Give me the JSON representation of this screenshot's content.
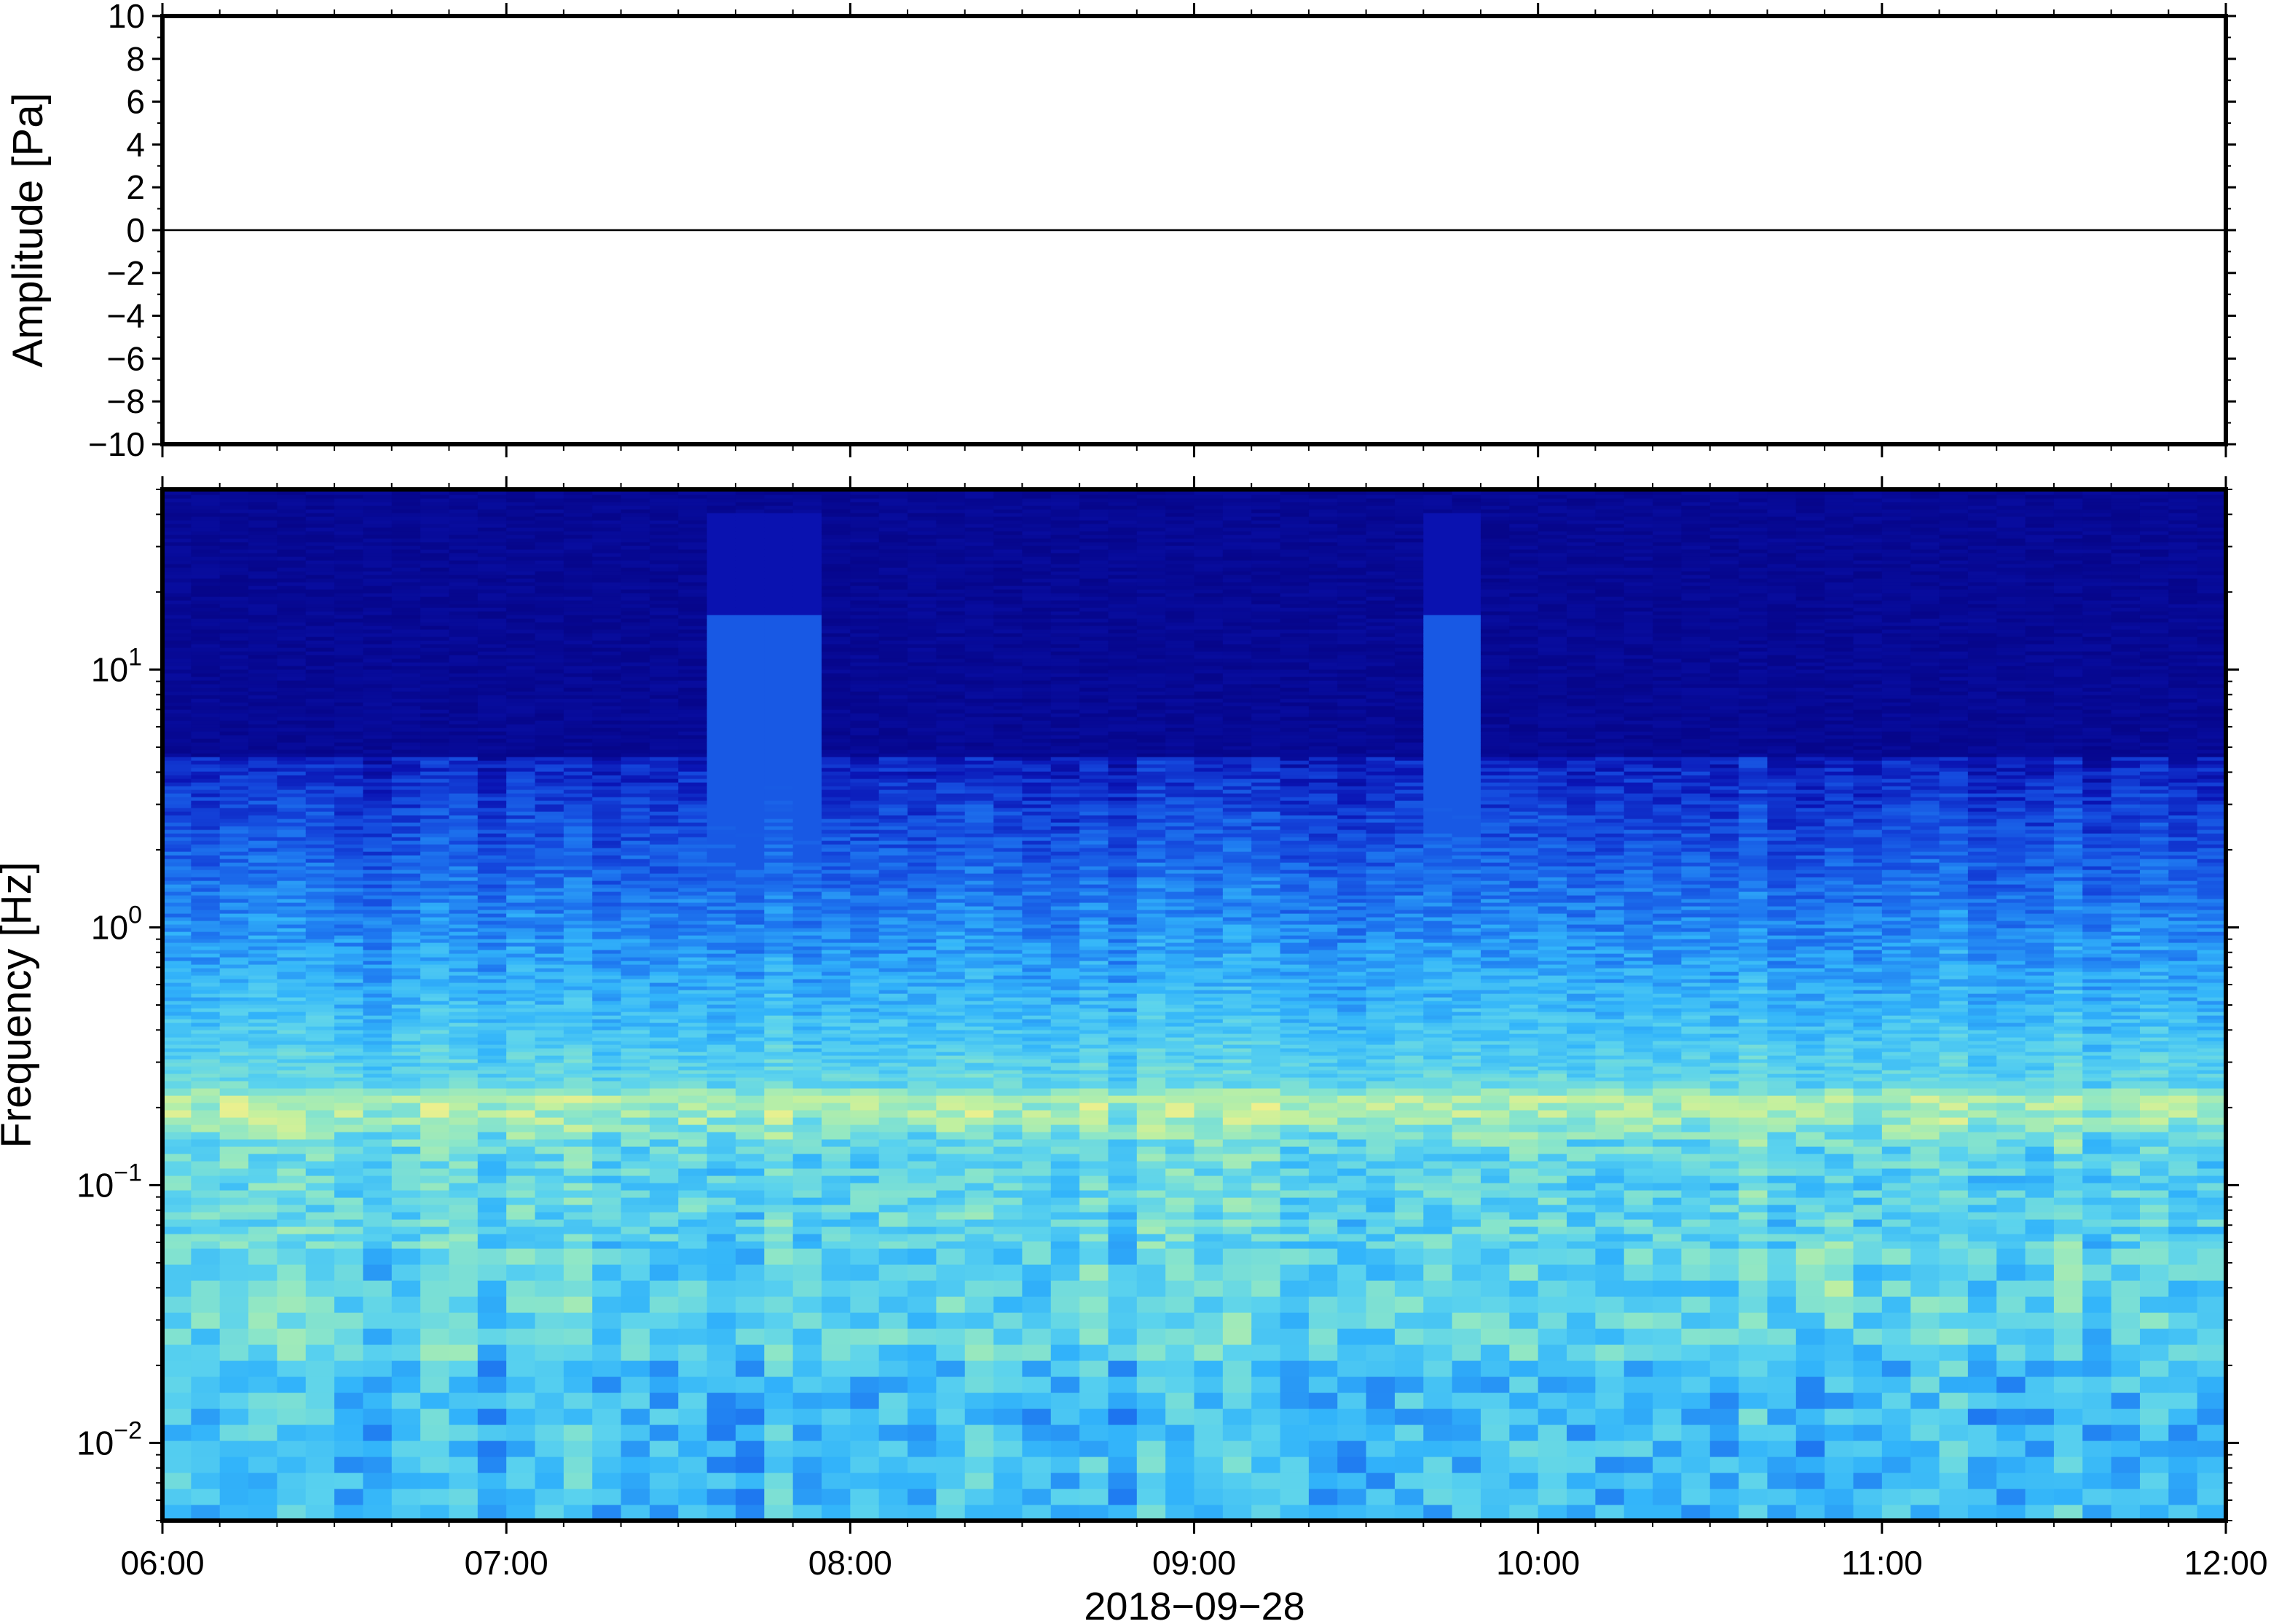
{
  "chart_data": [
    {
      "type": "line",
      "ylabel": "Amplitude [Pa]",
      "ylim": [
        -10,
        10
      ],
      "yticks": [
        "10",
        "8",
        "6",
        "4",
        "2",
        "0",
        "−2",
        "−4",
        "−6",
        "−8",
        "−10"
      ],
      "xlim": [
        "06:00",
        "12:00"
      ],
      "series": [
        {
          "x": [
            "06:00",
            "07:00",
            "08:00",
            "09:00",
            "10:00",
            "11:00",
            "12:00"
          ],
          "y": [
            0,
            0,
            0,
            0,
            0,
            0,
            0
          ]
        }
      ],
      "line_color": "#000000",
      "grid": false
    },
    {
      "type": "heatmap",
      "ylabel": "Frequency [Hz]",
      "yscale": "log",
      "ylim": [
        0.005,
        50
      ],
      "yticks": [
        {
          "base": "10",
          "exp": "1",
          "value": 10
        },
        {
          "base": "10",
          "exp": "0",
          "value": 1
        },
        {
          "base": "10",
          "exp": "−1",
          "value": 0.1
        },
        {
          "base": "10",
          "exp": "−2",
          "value": 0.01
        }
      ],
      "xlabel": "2018−09−28",
      "xticks": [
        "06:00",
        "07:00",
        "08:00",
        "09:00",
        "10:00",
        "11:00",
        "12:00"
      ],
      "colormap": [
        "#04007a",
        "#0a14b4",
        "#1446dc",
        "#1e78f0",
        "#32b4fa",
        "#5ad2ee",
        "#8ce6c8",
        "#c0f0a0",
        "#f0f08c",
        "#f5c85a"
      ],
      "features": {
        "microseism_band_hz": 0.2,
        "spike_times": [
          "07:40",
          "07:50",
          "09:45"
        ],
        "warm_spot_time": "10:50",
        "warm_spot_hz": 0.045
      }
    }
  ]
}
